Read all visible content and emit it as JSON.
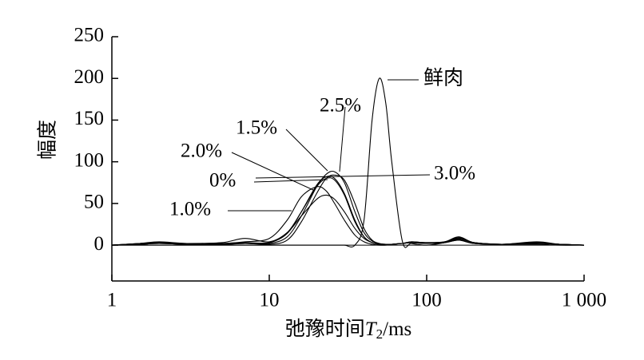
{
  "chart_data": {
    "type": "line",
    "y_label": "幅度",
    "x_label_parts": [
      "弛豫时间",
      "T",
      "2",
      "/ms"
    ],
    "log_x": true,
    "xlim": [
      1,
      1000
    ],
    "xticks": [
      1,
      10,
      100,
      {
        "value": 1000,
        "label": "1 000"
      }
    ],
    "ylim": [
      -43,
      250
    ],
    "yticks": [
      0,
      50,
      100,
      150,
      200,
      250
    ],
    "x": [
      1,
      1.5,
      2,
      3,
      5,
      7,
      10,
      13,
      16,
      20,
      23,
      26,
      30,
      35,
      40,
      45,
      50,
      55,
      60,
      70,
      80,
      100,
      130,
      160,
      200,
      300,
      500,
      700,
      1000
    ],
    "series": [
      {
        "name": "鲜肉",
        "color": "#000000",
        "values": [
          0,
          0,
          0,
          0,
          0,
          0,
          0,
          0,
          0,
          0,
          0,
          0,
          0,
          0,
          30,
          150,
          200,
          170,
          100,
          5,
          2,
          0,
          3,
          8,
          3,
          1,
          1,
          0,
          0
        ]
      },
      {
        "name": "2.5%",
        "color": "#000000",
        "values": [
          0,
          1,
          2,
          1,
          1,
          2,
          2,
          10,
          35,
          70,
          85,
          88,
          75,
          40,
          15,
          5,
          2,
          1,
          1,
          2,
          3,
          2,
          3,
          6,
          2,
          1,
          2,
          1,
          0
        ]
      },
      {
        "name": "1.5%",
        "color": "#000000",
        "values": [
          0,
          2,
          3,
          1,
          2,
          3,
          3,
          14,
          40,
          72,
          82,
          80,
          62,
          30,
          10,
          3,
          1,
          1,
          1,
          2,
          3,
          2,
          3,
          8,
          3,
          1,
          2,
          1,
          0
        ]
      },
      {
        "name": "2.0%",
        "color": "#000000",
        "values": [
          0,
          2,
          4,
          2,
          2,
          4,
          8,
          30,
          58,
          70,
          65,
          50,
          30,
          12,
          4,
          1,
          0,
          0,
          1,
          2,
          4,
          3,
          4,
          9,
          3,
          1,
          3,
          1,
          0
        ]
      },
      {
        "name": "0%",
        "color": "#000000",
        "values": [
          0,
          1,
          2,
          1,
          1,
          2,
          3,
          15,
          40,
          70,
          80,
          78,
          60,
          28,
          10,
          3,
          1,
          1,
          1,
          2,
          3,
          2,
          3,
          7,
          2,
          1,
          2,
          1,
          0
        ]
      },
      {
        "name": "3.0%",
        "color": "#000000",
        "values": [
          0,
          1,
          2,
          1,
          1,
          2,
          1,
          6,
          28,
          62,
          80,
          84,
          78,
          50,
          20,
          6,
          2,
          1,
          1,
          2,
          3,
          2,
          3,
          6,
          2,
          1,
          4,
          1,
          0
        ]
      },
      {
        "name": "1.0%",
        "color": "#000000",
        "values": [
          0,
          2,
          3,
          2,
          3,
          8,
          4,
          15,
          35,
          55,
          60,
          55,
          40,
          20,
          8,
          3,
          1,
          1,
          1,
          2,
          4,
          3,
          4,
          10,
          3,
          1,
          2,
          1,
          0
        ]
      }
    ]
  }
}
